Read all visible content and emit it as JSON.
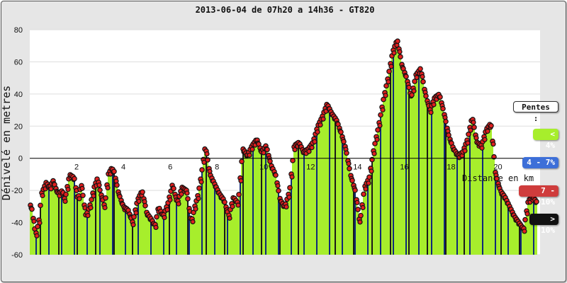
{
  "chart_data": {
    "type": "area",
    "title": "2013-06-04 de 07h20 a 14h36 - GT820",
    "ylabel": "Dénivelé en metres",
    "xlabel": "Distance en km",
    "xlim": [
      0,
      21.8
    ],
    "ylim": [
      -60,
      80
    ],
    "x_ticks": [
      2,
      4,
      6,
      8,
      10,
      12,
      14,
      16,
      18,
      20
    ],
    "y_ticks": [
      -60,
      -40,
      -20,
      0,
      20,
      40,
      60,
      80
    ],
    "grid": true,
    "series": [
      {
        "x": [
          0,
          0.1,
          0.25,
          0.4,
          0.5,
          0.7,
          0.85,
          1.0,
          1.2,
          1.4,
          1.5,
          1.7,
          1.9,
          2.05,
          2.2,
          2.4,
          2.6,
          2.75,
          2.9,
          3.0,
          3.2,
          3.35,
          3.5,
          3.6,
          3.8,
          4.0,
          4.2,
          4.4,
          4.6,
          4.8,
          5.0,
          5.2,
          5.35,
          5.5,
          5.7,
          5.9,
          6.1,
          6.3,
          6.5,
          6.7,
          6.9,
          7.05,
          7.2,
          7.35,
          7.5,
          7.7,
          7.9,
          8.1,
          8.3,
          8.5,
          8.7,
          8.9,
          9.1,
          9.3,
          9.5,
          9.7,
          9.9,
          10.1,
          10.3,
          10.5,
          10.7,
          10.9,
          11.1,
          11.3,
          11.5,
          11.7,
          11.9,
          12.1,
          12.3,
          12.5,
          12.7,
          12.9,
          13.1,
          13.3,
          13.5,
          13.7,
          13.9,
          14.1,
          14.3,
          14.5,
          14.7,
          14.9,
          15.1,
          15.3,
          15.5,
          15.7,
          15.9,
          16.1,
          16.3,
          16.5,
          16.7,
          16.9,
          17.1,
          17.3,
          17.5,
          17.7,
          17.9,
          18.1,
          18.3,
          18.5,
          18.7,
          18.9,
          19.1,
          19.3,
          19.5,
          19.7,
          19.9,
          20.1,
          20.3,
          20.5,
          20.7,
          20.9,
          21.1,
          21.3,
          21.5,
          21.7
        ],
        "y": [
          -28,
          -32,
          -48,
          -38,
          -22,
          -15,
          -18,
          -14,
          -22,
          -20,
          -26,
          -10,
          -12,
          -26,
          -16,
          -36,
          -28,
          -18,
          -12,
          -20,
          -30,
          -10,
          -6,
          -8,
          -22,
          -30,
          -32,
          -40,
          -26,
          -20,
          -34,
          -38,
          -42,
          -30,
          -36,
          -28,
          -16,
          -28,
          -18,
          -20,
          -40,
          -30,
          -22,
          -8,
          8,
          -10,
          -16,
          -22,
          -26,
          -36,
          -24,
          -28,
          6,
          2,
          8,
          12,
          4,
          8,
          -4,
          -10,
          -26,
          -30,
          -20,
          8,
          10,
          4,
          6,
          10,
          20,
          26,
          34,
          28,
          24,
          16,
          6,
          -10,
          -20,
          -40,
          -18,
          -12,
          6,
          20,
          36,
          50,
          66,
          74,
          58,
          50,
          38,
          52,
          56,
          40,
          30,
          38,
          40,
          28,
          14,
          6,
          2,
          4,
          12,
          26,
          10,
          8,
          18,
          22,
          -10,
          -20,
          -24,
          -30,
          -36,
          -40,
          -44,
          -26,
          -24,
          -28
        ]
      }
    ],
    "legend_title": "Pentes :",
    "legend": [
      {
        "label": "< 4%",
        "color": "#a7ee2c",
        "text_color": "#ffffff"
      },
      {
        "label": "4 - 7%",
        "color": "#3d6fd8",
        "text_color": "#ffffff"
      },
      {
        "label": "7 - 10%",
        "color": "#cf3c3c",
        "text_color": "#ffffff"
      },
      {
        "label": "> 10%",
        "color": "#111111",
        "text_color": "#ffffff"
      }
    ],
    "colors": {
      "fill_main": "#a7ee2c",
      "fill_alt": "#0f2a7a",
      "point_fill": "#e02020",
      "point_stroke": "#111111",
      "background": "#e6e6e6",
      "plot_bg": "#ffffff"
    }
  }
}
